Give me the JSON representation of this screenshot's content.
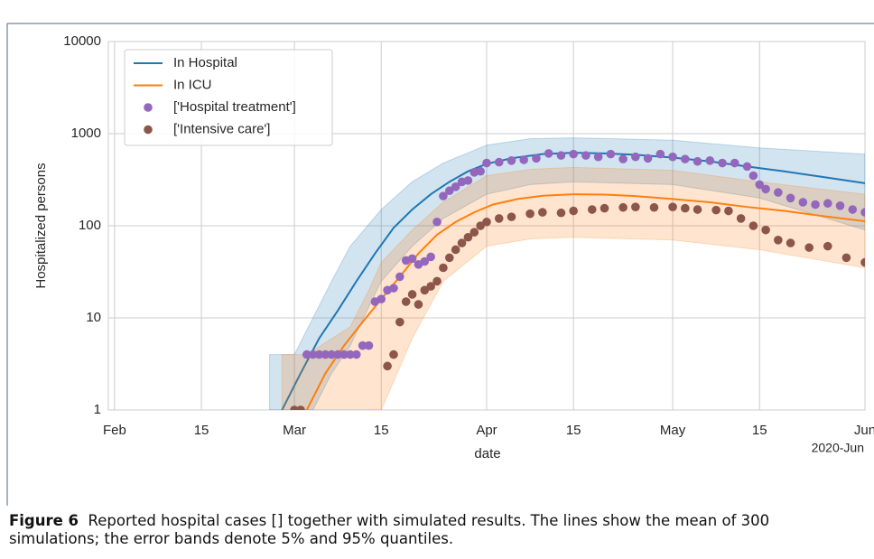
{
  "chart_data": {
    "type": "line",
    "xlabel": "date",
    "ylabel": "Hospitalized persons",
    "x_offset_label": "2020-Jun",
    "xlim": [
      "2020-01-31",
      "2020-06-01"
    ],
    "xticks": [
      {
        "value": "2020-02-01",
        "label": "Feb"
      },
      {
        "value": "2020-02-15",
        "label": "15"
      },
      {
        "value": "2020-03-01",
        "label": "Mar"
      },
      {
        "value": "2020-03-15",
        "label": "15"
      },
      {
        "value": "2020-04-01",
        "label": "Apr"
      },
      {
        "value": "2020-04-15",
        "label": "15"
      },
      {
        "value": "2020-05-01",
        "label": "May"
      },
      {
        "value": "2020-05-15",
        "label": "15"
      },
      {
        "value": "2020-06-01",
        "label": "Jun"
      }
    ],
    "ylim": [
      1,
      10000
    ],
    "yticks": [
      1,
      10,
      100,
      1000,
      10000
    ],
    "log_y": true,
    "grid": true,
    "legend": "upper left",
    "series": [
      {
        "name": "In Hospital",
        "type": "line",
        "color": "#1f77b4",
        "x": [
          "2020-02-28",
          "2020-03-02",
          "2020-03-05",
          "2020-03-08",
          "2020-03-11",
          "2020-03-14",
          "2020-03-17",
          "2020-03-20",
          "2020-03-23",
          "2020-03-26",
          "2020-03-29",
          "2020-04-01",
          "2020-04-05",
          "2020-04-10",
          "2020-04-15",
          "2020-04-20",
          "2020-04-25",
          "2020-05-01",
          "2020-05-07",
          "2020-05-13",
          "2020-05-19",
          "2020-05-25",
          "2020-06-01"
        ],
        "values": [
          1,
          2.5,
          6,
          12,
          25,
          50,
          95,
          150,
          220,
          300,
          390,
          470,
          540,
          600,
          620,
          610,
          590,
          550,
          500,
          440,
          390,
          340,
          290
        ],
        "band": {
          "x": [
            "2020-02-26",
            "2020-03-01",
            "2020-03-04",
            "2020-03-07",
            "2020-03-10",
            "2020-03-15",
            "2020-03-20",
            "2020-03-25",
            "2020-04-01",
            "2020-04-08",
            "2020-04-15",
            "2020-05-01",
            "2020-05-15",
            "2020-06-01"
          ],
          "lower": [
            1,
            1,
            1,
            2.5,
            5,
            25,
            60,
            120,
            220,
            280,
            300,
            280,
            200,
            90
          ],
          "upper": [
            4,
            4,
            10,
            25,
            60,
            150,
            300,
            480,
            750,
            880,
            900,
            850,
            700,
            600
          ]
        }
      },
      {
        "name": "In ICU",
        "type": "line",
        "color": "#ff7f0e",
        "x": [
          "2020-03-03",
          "2020-03-06",
          "2020-03-09",
          "2020-03-12",
          "2020-03-15",
          "2020-03-18",
          "2020-03-21",
          "2020-03-24",
          "2020-03-27",
          "2020-03-30",
          "2020-04-02",
          "2020-04-06",
          "2020-04-10",
          "2020-04-15",
          "2020-04-20",
          "2020-04-25",
          "2020-05-01",
          "2020-05-07",
          "2020-05-13",
          "2020-05-19",
          "2020-05-25",
          "2020-06-01"
        ],
        "values": [
          1,
          2.5,
          5,
          9,
          16,
          28,
          50,
          80,
          110,
          140,
          170,
          195,
          212,
          220,
          218,
          210,
          195,
          180,
          160,
          145,
          128,
          112
        ],
        "band": {
          "x": [
            "2020-02-28",
            "2020-03-03",
            "2020-03-10",
            "2020-03-13",
            "2020-03-15",
            "2020-03-20",
            "2020-03-25",
            "2020-04-01",
            "2020-04-08",
            "2020-04-15",
            "2020-05-01",
            "2020-05-15",
            "2020-06-01"
          ],
          "lower": [
            1,
            1,
            1,
            1,
            1,
            6,
            25,
            60,
            72,
            75,
            70,
            55,
            35
          ],
          "upper": [
            4,
            4,
            8,
            20,
            40,
            90,
            180,
            350,
            410,
            430,
            400,
            300,
            220
          ]
        }
      },
      {
        "name": "['Hospital treatment']",
        "type": "scatter",
        "color": "#9467bd",
        "x": [
          "2020-03-01",
          "2020-03-02",
          "2020-03-03",
          "2020-03-04",
          "2020-03-05",
          "2020-03-06",
          "2020-03-07",
          "2020-03-08",
          "2020-03-09",
          "2020-03-10",
          "2020-03-11",
          "2020-03-12",
          "2020-03-13",
          "2020-03-14",
          "2020-03-15",
          "2020-03-16",
          "2020-03-17",
          "2020-03-18",
          "2020-03-19",
          "2020-03-20",
          "2020-03-21",
          "2020-03-22",
          "2020-03-23",
          "2020-03-24",
          "2020-03-25",
          "2020-03-26",
          "2020-03-27",
          "2020-03-28",
          "2020-03-29",
          "2020-03-30",
          "2020-03-31",
          "2020-04-01",
          "2020-04-03",
          "2020-04-05",
          "2020-04-07",
          "2020-04-09",
          "2020-04-11",
          "2020-04-13",
          "2020-04-15",
          "2020-04-17",
          "2020-04-19",
          "2020-04-21",
          "2020-04-23",
          "2020-04-25",
          "2020-04-27",
          "2020-04-29",
          "2020-05-01",
          "2020-05-03",
          "2020-05-05",
          "2020-05-07",
          "2020-05-09",
          "2020-05-11",
          "2020-05-13",
          "2020-05-14",
          "2020-05-15",
          "2020-05-16",
          "2020-05-18",
          "2020-05-20",
          "2020-05-22",
          "2020-05-24",
          "2020-05-26",
          "2020-05-28",
          "2020-05-30",
          "2020-06-01"
        ],
        "values": [
          1,
          1,
          4,
          4,
          4,
          4,
          4,
          4,
          4,
          4,
          4,
          5,
          5,
          15,
          16,
          20,
          21,
          28,
          42,
          44,
          38,
          41,
          46,
          110,
          210,
          240,
          265,
          300,
          310,
          380,
          390,
          480,
          490,
          510,
          520,
          540,
          610,
          580,
          600,
          580,
          560,
          600,
          530,
          560,
          540,
          600,
          560,
          530,
          500,
          510,
          480,
          480,
          440,
          350,
          280,
          250,
          230,
          200,
          180,
          170,
          175,
          165,
          150,
          140
        ]
      },
      {
        "name": "['Intensive care']",
        "type": "scatter",
        "color": "#8c564b",
        "x": [
          "2020-03-01",
          "2020-03-02",
          "2020-03-16",
          "2020-03-17",
          "2020-03-18",
          "2020-03-19",
          "2020-03-20",
          "2020-03-21",
          "2020-03-22",
          "2020-03-23",
          "2020-03-24",
          "2020-03-25",
          "2020-03-26",
          "2020-03-27",
          "2020-03-28",
          "2020-03-29",
          "2020-03-30",
          "2020-03-31",
          "2020-04-01",
          "2020-04-03",
          "2020-04-05",
          "2020-04-08",
          "2020-04-10",
          "2020-04-13",
          "2020-04-15",
          "2020-04-18",
          "2020-04-20",
          "2020-04-23",
          "2020-04-25",
          "2020-04-28",
          "2020-05-01",
          "2020-05-03",
          "2020-05-05",
          "2020-05-08",
          "2020-05-10",
          "2020-05-12",
          "2020-05-14",
          "2020-05-16",
          "2020-05-18",
          "2020-05-20",
          "2020-05-23",
          "2020-05-26",
          "2020-05-29",
          "2020-06-01"
        ],
        "values": [
          1,
          1,
          3,
          4,
          9,
          15,
          18,
          14,
          20,
          22,
          25,
          35,
          45,
          55,
          65,
          75,
          85,
          100,
          110,
          120,
          125,
          135,
          140,
          138,
          145,
          150,
          155,
          158,
          160,
          158,
          160,
          155,
          150,
          148,
          145,
          120,
          100,
          90,
          70,
          65,
          58,
          60,
          45,
          40
        ]
      }
    ]
  },
  "caption": {
    "label": "Figure 6",
    "text": "Reported hospital cases [] together with simulated results. The lines show the mean of 300 simulations; the error bands denote 5% and 95% quantiles."
  }
}
